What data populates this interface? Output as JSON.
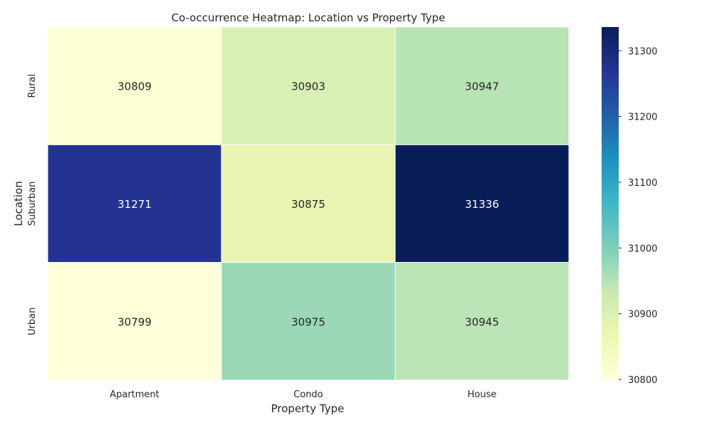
{
  "chart_data": {
    "type": "heatmap",
    "title": "Co-occurrence Heatmap: Location vs Property Type",
    "xlabel": "Property Type",
    "ylabel": "Location",
    "x_categories": [
      "Apartment",
      "Condo",
      "House"
    ],
    "y_categories": [
      "Rural",
      "Suburban",
      "Urban"
    ],
    "values": [
      [
        30809,
        30903,
        30947
      ],
      [
        31271,
        30875,
        31336
      ],
      [
        30799,
        30975,
        30945
      ]
    ],
    "colorbar": {
      "min": 30799,
      "max": 31336,
      "ticks": [
        30800,
        30900,
        31000,
        31100,
        31200,
        31300
      ],
      "colormap": "YlGnBu"
    }
  }
}
